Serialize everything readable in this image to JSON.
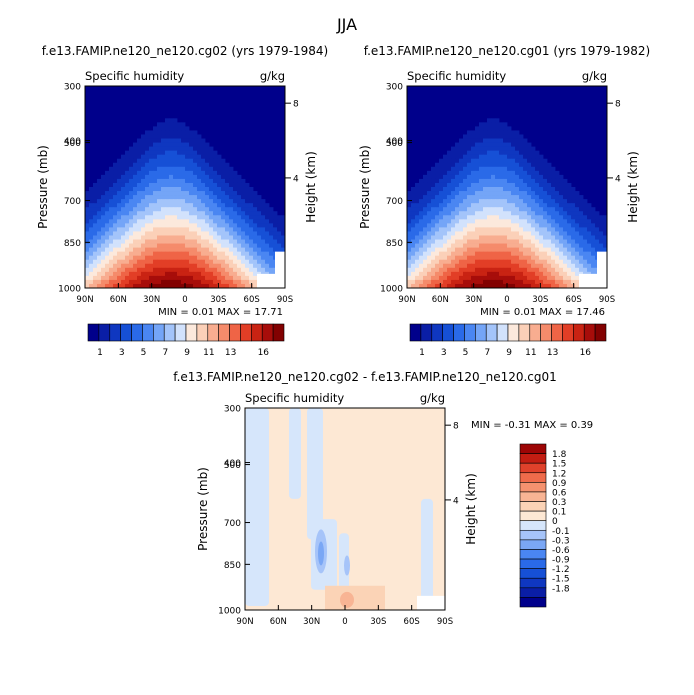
{
  "figure": {
    "season": "JJA"
  },
  "colors": {
    "humidity_levels": [
      "#00008b",
      "#0a1ea6",
      "#0f37c0",
      "#1650d6",
      "#2a6ae8",
      "#4a86f2",
      "#74a5f7",
      "#a3c4fa",
      "#d2e2fc",
      "#fce9dc",
      "#fbd0b8",
      "#f8ad90",
      "#f58b6b",
      "#ef6446",
      "#e23e26",
      "#c92313",
      "#a70d0a",
      "#820101"
    ],
    "diff_levels": [
      "#00008b",
      "#0a1ea6",
      "#0f37c0",
      "#1650d6",
      "#2a6ae8",
      "#4a86f2",
      "#7aa7f5",
      "#a6c4f9",
      "#d6e6fb",
      "#fde8d4",
      "#fbd3b6",
      "#f8b494",
      "#f5926f",
      "#ef6b4b",
      "#e0412b",
      "#c31d12",
      "#9d0505"
    ]
  },
  "chart_data": [
    {
      "type": "heatmap",
      "title": "f.e13.FAMIP.ne120_ne120.cg02 (yrs 1979-1984)",
      "left_label": "Specific humidity",
      "right_label": "g/kg",
      "ylabel": "Pressure (mb)",
      "y2label": "Height (km)",
      "x_ticks": [
        "90N",
        "60N",
        "30N",
        "0",
        "30S",
        "60S",
        "90S"
      ],
      "y_ticks": [
        "300",
        "400",
        "500",
        "700",
        "850",
        "1000"
      ],
      "y2_ticks": [
        "8",
        "4"
      ],
      "stats": "MIN =    0.01   MAX =    17.71",
      "colorbar_labels": [
        "1",
        "3",
        "5",
        "7",
        "9",
        "11",
        "13",
        "16"
      ],
      "contour_levels": [
        1,
        2,
        3,
        4,
        5,
        6,
        7,
        8,
        9,
        10,
        11,
        12,
        13,
        14,
        15,
        16
      ],
      "max": 17.71,
      "min": 0.01
    },
    {
      "type": "heatmap",
      "title": "f.e13.FAMIP.ne120_ne120.cg01 (yrs 1979-1982)",
      "left_label": "Specific humidity",
      "right_label": "g/kg",
      "ylabel": "Pressure (mb)",
      "y2label": "Height (km)",
      "x_ticks": [
        "90N",
        "60N",
        "30N",
        "0",
        "30S",
        "60S",
        "90S"
      ],
      "y_ticks": [
        "300",
        "400",
        "500",
        "700",
        "850",
        "1000"
      ],
      "y2_ticks": [
        "8",
        "4"
      ],
      "stats": "MIN =    0.01   MAX =    17.46",
      "colorbar_labels": [
        "1",
        "3",
        "5",
        "7",
        "9",
        "11",
        "13",
        "16"
      ],
      "contour_levels": [
        1,
        2,
        3,
        4,
        5,
        6,
        7,
        8,
        9,
        10,
        11,
        12,
        13,
        14,
        15,
        16
      ],
      "max": 17.46,
      "min": 0.01
    },
    {
      "type": "heatmap",
      "title": "f.e13.FAMIP.ne120_ne120.cg02 - f.e13.FAMIP.ne120_ne120.cg01",
      "left_label": "Specific humidity",
      "right_label": "g/kg",
      "ylabel": "Pressure (mb)",
      "y2label": "Height (km)",
      "x_ticks": [
        "90N",
        "60N",
        "30N",
        "0",
        "30S",
        "60S",
        "90S"
      ],
      "y_ticks": [
        "300",
        "400",
        "500",
        "700",
        "850",
        "1000"
      ],
      "y2_ticks": [
        "8",
        "4"
      ],
      "stats": "MIN =   -0.31   MAX =    0.39",
      "colorbar_labels": [
        "1.8",
        "1.5",
        "1.2",
        "0.9",
        "0.6",
        "0.3",
        "0.1",
        "0",
        "-0.1",
        "-0.3",
        "-0.6",
        "-0.9",
        "-1.2",
        "-1.5",
        "-1.8"
      ],
      "contour_levels": [
        -1.8,
        -1.5,
        -1.2,
        -0.9,
        -0.6,
        -0.3,
        -0.1,
        0,
        0.1,
        0.3,
        0.6,
        0.9,
        1.2,
        1.5,
        1.8
      ],
      "max": 0.39,
      "min": -0.31
    }
  ]
}
